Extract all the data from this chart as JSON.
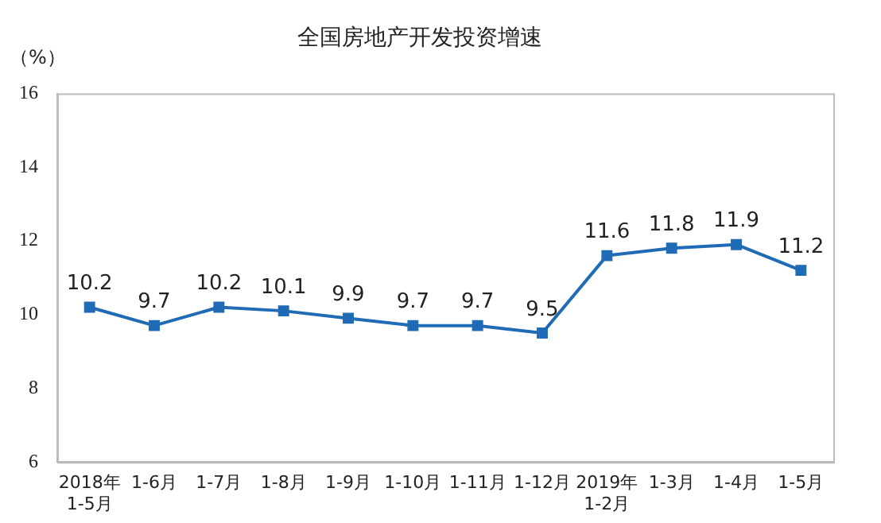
{
  "chart_data": {
    "type": "line",
    "title": "全国房地产开发投资增速",
    "ylabel": "（%）",
    "categories": [
      "2018年\n1-5月",
      "1-6月",
      "1-7月",
      "1-8月",
      "1-9月",
      "1-10月",
      "1-11月",
      "1-12月",
      "2019年\n1-2月",
      "1-3月",
      "1-4月",
      "1-5月"
    ],
    "series": [
      {
        "color": "#1f6bb5",
        "values": [
          10.2,
          9.7,
          10.2,
          10.1,
          9.9,
          9.7,
          9.7,
          9.5,
          11.6,
          11.8,
          11.9,
          11.2
        ]
      }
    ],
    "ylim": [
      6,
      16
    ],
    "yticks": [
      6,
      8,
      10,
      12,
      14,
      16
    ],
    "grid": false,
    "legend": false,
    "marker": "square",
    "data_labels": true
  }
}
